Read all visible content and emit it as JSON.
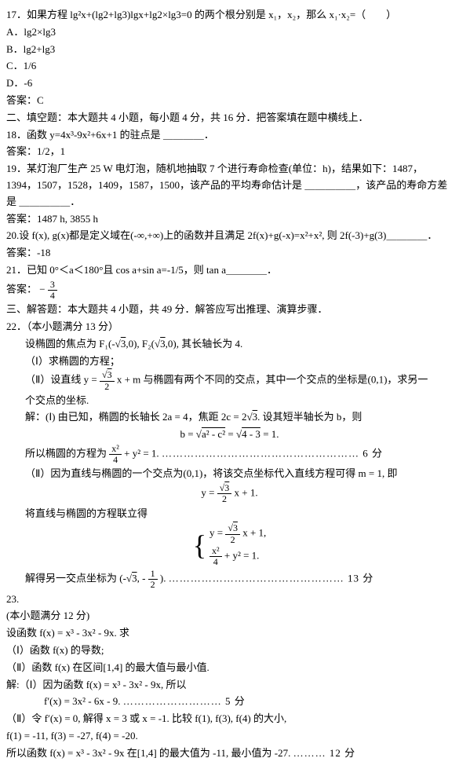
{
  "q17": {
    "stem": "17．如果方程 lg²x+(lg2+lg3)lgx+lg2×lg3=0 的两个根分别是 x₁，x₂，那么 x₁·x₂=（　　）",
    "optA": "A．lg2×lg3",
    "optB": "B．lg2+lg3",
    "optC": "C．1/6",
    "optD": "D．-6",
    "ans": "答案：C"
  },
  "sec2": "二、填空题：本大题共 4 小题，每小题 4 分，共 16 分．把答案填在题中横线上．",
  "q18": {
    "stem": "18．函数 y=4x³-9x²+6x+1 的驻点是 ＿＿＿＿．",
    "ans": "答案：1/2，1"
  },
  "q19": {
    "stem": "19．某灯泡厂生产 25 W 电灯泡，随机地抽取 7 个进行寿命检查(单位：h)，结果如下：1487，1394，1507，1528，1409，1587，1500，该产品的平均寿命估计是 ＿＿＿＿＿，该产品的寿命方差是 ＿＿＿＿＿．",
    "ans": "答案：1487 h, 3855 h"
  },
  "q20": {
    "stem": "20.设 f(x), g(x)都是定义域在(-∞,+∞)上的函数并且满足 2f(x)+g(-x)=x²+x², 则 2f(-3)+g(3)＿＿＿＿．",
    "ans": "答案：-18"
  },
  "q21": {
    "stem": "21．已知 0°＜a＜180°且 cos a+sin a=-1/5，则 tan a＿＿＿＿．",
    "ansLabel": "答案：",
    "ansNum": "3",
    "ansDen": "4"
  },
  "sec3": "三、解答题：本大题共 4 小题，共 49 分．解答应写出推理、演算步骤．",
  "q22": {
    "head": "22．（本小题满分 13 分）",
    "l1a": "设椭圆的焦点为 F₁(-",
    "l1b": ",0), F₂(",
    "l1c": ",0), 其长轴长为 4.",
    "l2": "（Ⅰ）求椭圆的方程；",
    "l3a": "（Ⅱ）设直线 y = ",
    "l3num": "3",
    "l3den": "2",
    "l3b": "x + m 与椭圆有两个不同的交点，其中一个交点的坐标是(0,1)，求另一",
    "l4": "个交点的坐标.",
    "sol1a": "解：(Ⅰ) 由已知，椭圆的长轴长 2a = 4，焦距 2c = 2",
    "sol1b": ". 设其短半轴长为 b，则",
    "sol2a": "b = ",
    "sol2b": "a² - c²",
    "sol2c": " = ",
    "sol2d": "4 - 3",
    "sol2e": " = 1.",
    "sol3a": "所以椭圆的方程为 ",
    "sol3num": "x²",
    "sol3den": "4",
    "sol3b": " + y² = 1.  ",
    "sol3dots": "……………………………………………… 6 分",
    "sol4": "（Ⅱ）因为直线与椭圆的一个交点为(0,1)，将该交点坐标代入直线方程可得 m = 1, 即",
    "sol5a": "y = ",
    "sol5num": "3",
    "sol5den": "2",
    "sol5b": "x + 1.",
    "sol6": "将直线与椭圆的方程联立得",
    "sys1a": "y = ",
    "sys1num": "3",
    "sys1den": "2",
    "sys1b": "x + 1,",
    "sys2num": "x²",
    "sys2den": "4",
    "sys2b": " + y² = 1.",
    "sol7a": "解得另一交点坐标为 (-",
    "sol7b": ", -",
    "sol7num": "1",
    "sol7den": "2",
    "sol7c": ").  ",
    "sol7dots": "………………………………………… 13 分"
  },
  "q23": {
    "head": "23.",
    "l1": "(本小题满分 12 分)",
    "l2": "设函数 f(x) = x³ - 3x² - 9x. 求",
    "l3": "（Ⅰ）函数 f(x) 的导数;",
    "l4": "（Ⅱ）函数 f(x) 在区间[1,4] 的最大值与最小值.",
    "sol1": "解:（Ⅰ）因为函数 f(x) = x³ - 3x² - 9x, 所以",
    "sol2a": "f′(x) = 3x² - 6x - 9.  ",
    "sol2dots": "……………………… 5 分",
    "sol3": "（Ⅱ）令 f′(x) = 0, 解得 x = 3 或 x = -1. 比较 f(1), f(3), f(4) 的大小,",
    "sol4": "f(1) = -11, f(3) = -27, f(4) = -20.",
    "sol5a": "所以函数 f(x) = x³ - 3x² - 9x 在[1,4] 的最大值为 -11, 最小值为 -27. ",
    "sol5dots": "……… 12 分"
  },
  "sqrt3": "3"
}
